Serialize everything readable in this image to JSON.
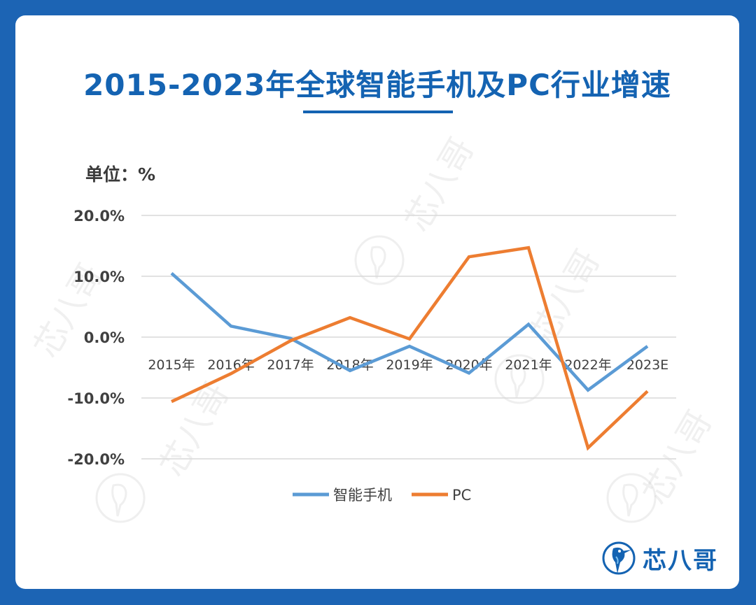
{
  "title": "2015-2023年全球智能手机及PC行业增速",
  "unit_label": "单位：%",
  "brand": {
    "name": "芯八哥",
    "logo": "kingfisher-logo-icon"
  },
  "watermark": {
    "text": "芯八哥",
    "icon": "kingfisher-watermark-icon"
  },
  "colors": {
    "accent": "#1463b2",
    "background": "#1c64b4",
    "smartphone": "#5b9bd5",
    "pc": "#ed7d31",
    "grid": "#d9d9d9"
  },
  "chart_data": {
    "type": "line",
    "categories": [
      "2015年",
      "2016年",
      "2017年",
      "2018年",
      "2019年",
      "2020年",
      "2021年",
      "2022年",
      "2023E"
    ],
    "y_ticks": [
      "20.0%",
      "10.0%",
      "0.0%",
      "-10.0%",
      "-20.0%"
    ],
    "ylim": [
      -20,
      20
    ],
    "grid": true,
    "legend_position": "bottom",
    "series": [
      {
        "name": "智能手机",
        "values": [
          10.5,
          1.8,
          -0.2,
          -5.5,
          -1.5,
          -5.9,
          2.1,
          -8.7,
          -1.5
        ]
      },
      {
        "name": "PC",
        "values": [
          -10.6,
          -6.0,
          -0.6,
          3.2,
          -0.3,
          13.2,
          14.7,
          -18.2,
          -8.9
        ]
      }
    ]
  }
}
